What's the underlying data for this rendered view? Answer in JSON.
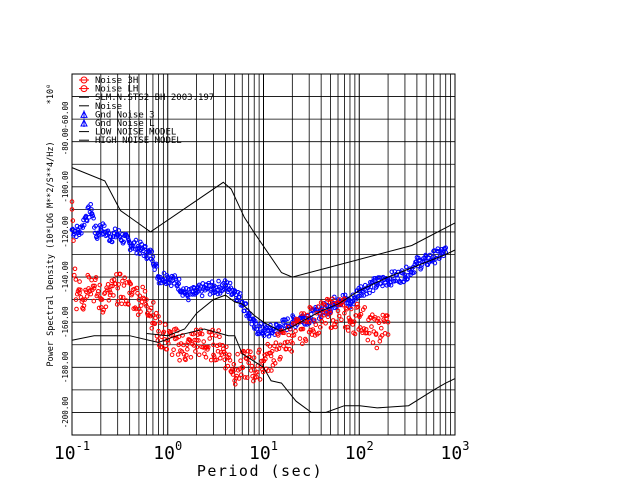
{
  "chart_data": {
    "type": "scatter",
    "xlabel": "Period (sec)",
    "ylabel": "Power Spectral Density (10*LOG M**2/S**4/Hz)",
    "y_multiplier": "*10⁰",
    "x_scale": "log",
    "xlim": [
      0.1,
      1000
    ],
    "ylim": [
      -210,
      -50
    ],
    "grid": true,
    "x_ticks": [
      {
        "value": 0.1,
        "base": "10",
        "exp": "-1"
      },
      {
        "value": 1,
        "base": "10",
        "exp": "0"
      },
      {
        "value": 10,
        "base": "10",
        "exp": "1"
      },
      {
        "value": 100,
        "base": "10",
        "exp": "2"
      },
      {
        "value": 1000,
        "base": "10",
        "exp": "3"
      }
    ],
    "y_ticks": [
      {
        "value": -60,
        "label": "-60.00"
      },
      {
        "value": -80,
        "label": "-80.00"
      },
      {
        "value": -100,
        "label": "-100.00"
      },
      {
        "value": -120,
        "label": "-120.00"
      },
      {
        "value": -140,
        "label": "-140.00"
      },
      {
        "value": -160,
        "label": "-160.00"
      },
      {
        "value": -180,
        "label": "-180.00"
      },
      {
        "value": -200,
        "label": "-200.00"
      }
    ],
    "top_ytick_label": "-60.00",
    "legend": [
      {
        "label": "Noise 3H",
        "color": "#ff0000",
        "marker": "circle"
      },
      {
        "label": "Noise LH",
        "color": "#ff0000",
        "marker": "circle"
      },
      {
        "label": "SLM.N.STS2 BH  2003.197",
        "color": "#000000",
        "marker": "line"
      },
      {
        "label": "Noise",
        "color": "#000000",
        "marker": "line"
      },
      {
        "label": "Gnd Noise 3",
        "color": "#0000ff",
        "marker": "triangle"
      },
      {
        "label": "Gnd Noise L",
        "color": "#0000ff",
        "marker": "triangle"
      },
      {
        "label": "LOW NOISE MODEL",
        "color": "#000000",
        "marker": "line"
      },
      {
        "label": "HIGH NOISE MODEL",
        "color": "#000000",
        "marker": "line"
      }
    ],
    "series": [
      {
        "name": "Gnd Noise 3",
        "color": "#0000ff",
        "points": [
          [
            0.1,
            -119
          ],
          [
            0.12,
            -120
          ],
          [
            0.14,
            -113
          ],
          [
            0.16,
            -110
          ],
          [
            0.18,
            -122
          ],
          [
            0.2,
            -118
          ],
          [
            0.25,
            -122
          ],
          [
            0.3,
            -121
          ],
          [
            0.4,
            -125
          ],
          [
            0.5,
            -127
          ],
          [
            0.6,
            -129
          ],
          [
            0.7,
            -131
          ],
          [
            0.8,
            -140
          ],
          [
            1.0,
            -140
          ],
          [
            1.3,
            -143
          ],
          [
            1.6,
            -148
          ],
          [
            2.0,
            -147
          ],
          [
            2.5,
            -145
          ],
          [
            3.0,
            -145
          ],
          [
            4.0,
            -144
          ],
          [
            5.0,
            -146
          ],
          [
            6.0,
            -151
          ],
          [
            7.0,
            -156
          ],
          [
            8.0,
            -162
          ],
          [
            10,
            -164
          ],
          [
            12,
            -164
          ],
          [
            15,
            -162
          ],
          [
            20,
            -160
          ],
          [
            25,
            -158
          ],
          [
            30,
            -158
          ],
          [
            40,
            -155
          ],
          [
            50,
            -153
          ],
          [
            60,
            -150
          ],
          [
            70,
            -150
          ],
          [
            80,
            -152
          ],
          [
            100,
            -146
          ],
          [
            150,
            -143
          ],
          [
            200,
            -141
          ],
          [
            300,
            -139
          ],
          [
            400,
            -134
          ],
          [
            500,
            -133
          ],
          [
            600,
            -131
          ],
          [
            800,
            -129
          ]
        ]
      },
      {
        "name": "Noise 3H",
        "color": "#ff0000",
        "points": [
          [
            0.1,
            -110
          ],
          [
            0.11,
            -150
          ],
          [
            0.12,
            -142
          ],
          [
            0.13,
            -150
          ],
          [
            0.15,
            -140
          ],
          [
            0.17,
            -145
          ],
          [
            0.2,
            -150
          ],
          [
            0.25,
            -148
          ],
          [
            0.3,
            -145
          ],
          [
            0.4,
            -147
          ],
          [
            0.5,
            -150
          ],
          [
            0.6,
            -150
          ],
          [
            0.7,
            -157
          ],
          [
            0.8,
            -164
          ],
          [
            1.0,
            -168
          ],
          [
            1.3,
            -170
          ],
          [
            1.6,
            -172
          ],
          [
            2.0,
            -168
          ],
          [
            2.5,
            -171
          ],
          [
            3.0,
            -170
          ],
          [
            3.5,
            -170
          ],
          [
            4.0,
            -174
          ],
          [
            5.0,
            -181
          ],
          [
            6.0,
            -180
          ],
          [
            7.0,
            -178
          ],
          [
            8.0,
            -181
          ],
          [
            10,
            -177
          ],
          [
            12,
            -175
          ],
          [
            15,
            -170
          ],
          [
            20,
            -166
          ],
          [
            25,
            -163
          ],
          [
            30,
            -160
          ],
          [
            40,
            -158
          ],
          [
            50,
            -156
          ],
          [
            60,
            -155
          ],
          [
            70,
            -156
          ],
          [
            80,
            -160
          ],
          [
            100,
            -157
          ],
          [
            150,
            -165
          ],
          [
            200,
            -160
          ]
        ]
      },
      {
        "name": "LOW NOISE MODEL",
        "color": "#000000",
        "points": [
          [
            0.1,
            -168
          ],
          [
            0.17,
            -166
          ],
          [
            0.4,
            -166
          ],
          [
            0.8,
            -169
          ],
          [
            1.24,
            -166
          ],
          [
            2.4,
            -163
          ],
          [
            4.3,
            -166
          ],
          [
            5.0,
            -166
          ],
          [
            6.0,
            -174
          ],
          [
            10,
            -180
          ],
          [
            12,
            -186
          ],
          [
            15.4,
            -187
          ],
          [
            20,
            -193
          ],
          [
            21.9,
            -195
          ],
          [
            31.6,
            -200
          ],
          [
            45,
            -200
          ],
          [
            70,
            -197
          ],
          [
            101,
            -197
          ],
          [
            154,
            -198
          ],
          [
            328,
            -197
          ],
          [
            600,
            -190
          ],
          [
            800,
            -187
          ],
          [
            1000,
            -185
          ]
        ]
      },
      {
        "name": "HIGH NOISE MODEL",
        "color": "#000000",
        "points": [
          [
            0.1,
            -91.5
          ],
          [
            0.22,
            -97.4
          ],
          [
            0.32,
            -110.5
          ],
          [
            0.66,
            -120
          ],
          [
            3.8,
            -98
          ],
          [
            4.6,
            -101
          ],
          [
            6.3,
            -113.5
          ],
          [
            7.9,
            -120
          ],
          [
            15.4,
            -138
          ],
          [
            20,
            -140
          ],
          [
            354,
            -126
          ],
          [
            1000,
            -116
          ]
        ]
      },
      {
        "name": "Noise",
        "color": "#000000",
        "points": [
          [
            0.6,
            -165
          ],
          [
            1.0,
            -166
          ],
          [
            1.5,
            -163
          ],
          [
            2.0,
            -156
          ],
          [
            3.0,
            -150
          ],
          [
            4.0,
            -148
          ],
          [
            5.0,
            -151
          ],
          [
            6.0,
            -152
          ],
          [
            8.0,
            -157
          ],
          [
            10,
            -160
          ],
          [
            15,
            -164
          ],
          [
            20,
            -162
          ],
          [
            40,
            -155
          ],
          [
            60,
            -152
          ],
          [
            100,
            -146
          ],
          [
            200,
            -140
          ],
          [
            400,
            -135
          ],
          [
            800,
            -130
          ],
          [
            1000,
            -128
          ]
        ]
      }
    ]
  }
}
